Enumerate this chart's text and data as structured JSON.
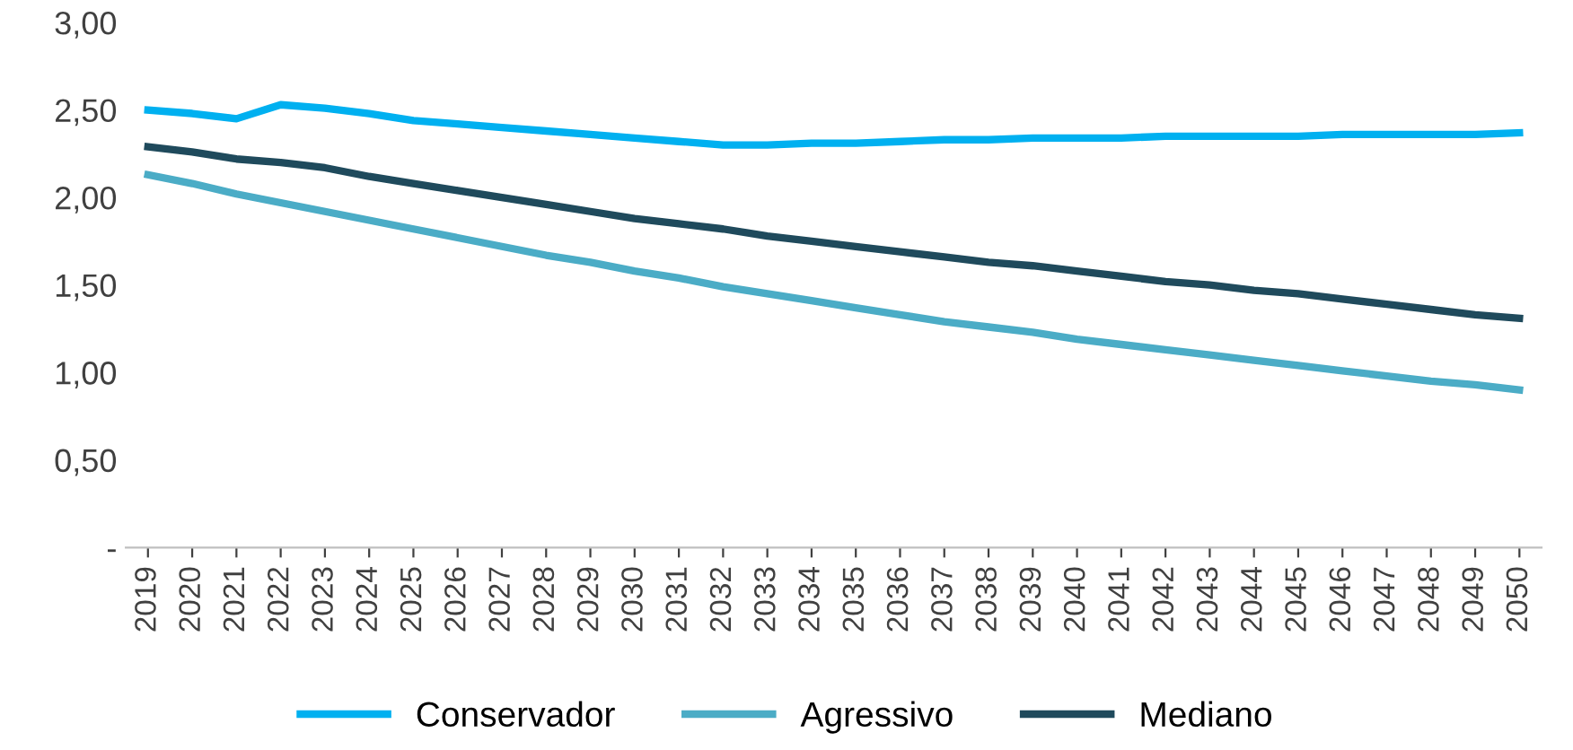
{
  "chart_data": {
    "type": "line",
    "categories": [
      "2019",
      "2020",
      "2021",
      "2022",
      "2023",
      "2024",
      "2025",
      "2026",
      "2027",
      "2028",
      "2029",
      "2030",
      "2031",
      "2032",
      "2033",
      "2034",
      "2035",
      "2036",
      "2037",
      "2038",
      "2039",
      "2040",
      "2041",
      "2042",
      "2043",
      "2044",
      "2045",
      "2046",
      "2047",
      "2048",
      "2049",
      "2050"
    ],
    "series": [
      {
        "name": "Conservador",
        "color": "#00b0f0",
        "values": [
          2.5,
          2.48,
          2.45,
          2.53,
          2.51,
          2.48,
          2.44,
          2.42,
          2.4,
          2.38,
          2.36,
          2.34,
          2.32,
          2.3,
          2.3,
          2.31,
          2.31,
          2.32,
          2.33,
          2.33,
          2.34,
          2.34,
          2.34,
          2.35,
          2.35,
          2.35,
          2.35,
          2.36,
          2.36,
          2.36,
          2.36,
          2.37
        ]
      },
      {
        "name": "Agressivo",
        "color": "#4bacc6",
        "values": [
          2.13,
          2.08,
          2.02,
          1.97,
          1.92,
          1.87,
          1.82,
          1.77,
          1.72,
          1.67,
          1.63,
          1.58,
          1.54,
          1.49,
          1.45,
          1.41,
          1.37,
          1.33,
          1.29,
          1.26,
          1.23,
          1.19,
          1.16,
          1.13,
          1.1,
          1.07,
          1.04,
          1.01,
          0.98,
          0.95,
          0.93,
          0.9
        ]
      },
      {
        "name": "Mediano",
        "color": "#1f4a5c",
        "values": [
          2.29,
          2.26,
          2.22,
          2.2,
          2.17,
          2.12,
          2.08,
          2.04,
          2.0,
          1.96,
          1.92,
          1.88,
          1.85,
          1.82,
          1.78,
          1.75,
          1.72,
          1.69,
          1.66,
          1.63,
          1.61,
          1.58,
          1.55,
          1.52,
          1.5,
          1.47,
          1.45,
          1.42,
          1.39,
          1.36,
          1.33,
          1.31
        ]
      }
    ],
    "ylim": [
      0,
      3
    ],
    "yticks": [
      {
        "value": 0,
        "label": "-"
      },
      {
        "value": 0.5,
        "label": "0,50"
      },
      {
        "value": 1,
        "label": "1,00"
      },
      {
        "value": 1.5,
        "label": "1,50"
      },
      {
        "value": 2,
        "label": "2,00"
      },
      {
        "value": 2.5,
        "label": "2,50"
      },
      {
        "value": 3,
        "label": "3,00"
      }
    ],
    "grid": false,
    "legend": "bottom",
    "marker": "none",
    "line_style": "solid"
  }
}
